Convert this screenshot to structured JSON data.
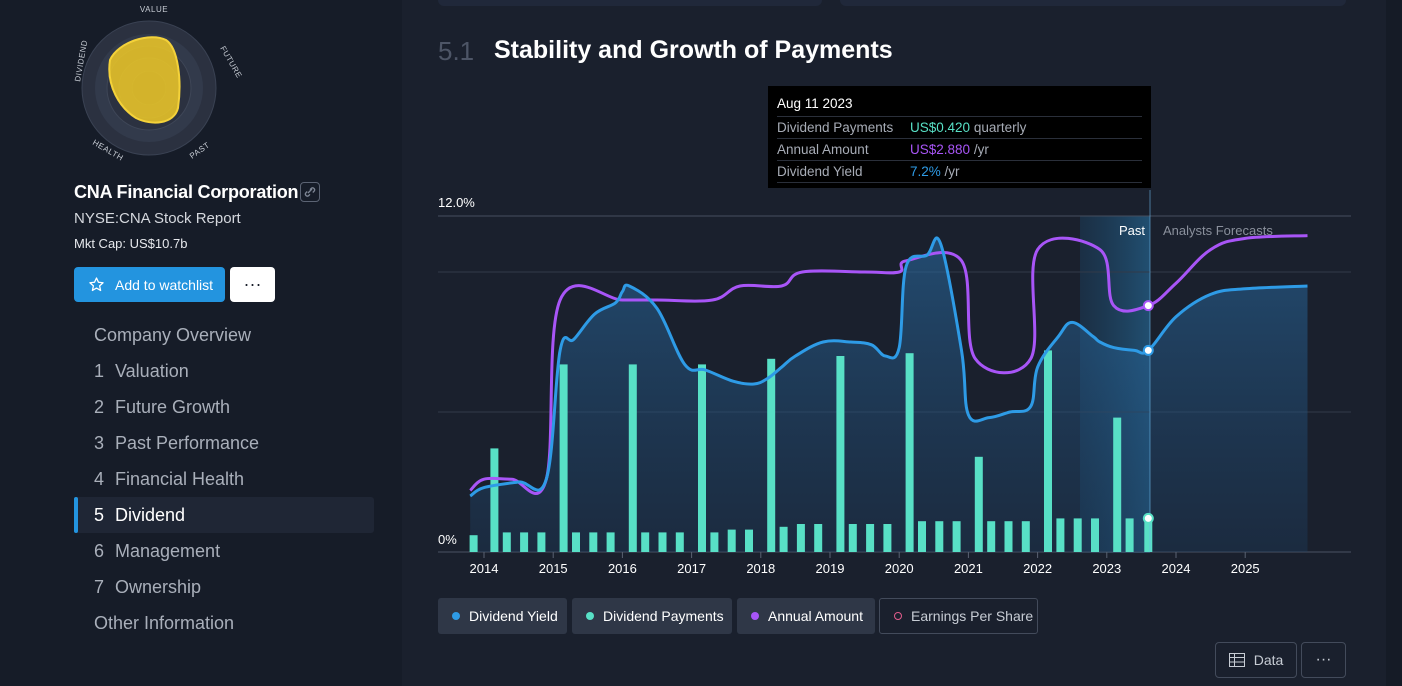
{
  "company": {
    "name": "CNA Financial Corporation",
    "ticker_line": "NYSE:CNA Stock Report",
    "market_cap": "Mkt Cap: US$10.7b"
  },
  "snowflake": {
    "axes": [
      "VALUE",
      "FUTURE",
      "PAST",
      "HEALTH",
      "DIVIDEND"
    ],
    "fill_color": "#e6c229"
  },
  "actions": {
    "watchlist_label": "Add to watchlist",
    "more_label": "···"
  },
  "nav": {
    "items": [
      {
        "num": "",
        "label": "Company Overview"
      },
      {
        "num": "1",
        "label": "Valuation"
      },
      {
        "num": "2",
        "label": "Future Growth"
      },
      {
        "num": "3",
        "label": "Past Performance"
      },
      {
        "num": "4",
        "label": "Financial Health"
      },
      {
        "num": "5",
        "label": "Dividend",
        "active": true
      },
      {
        "num": "6",
        "label": "Management"
      },
      {
        "num": "7",
        "label": "Ownership"
      },
      {
        "num": "",
        "label": "Other Information"
      }
    ]
  },
  "section": {
    "number": "5.1",
    "title": "Stability and Growth of Payments"
  },
  "tooltip": {
    "date": "Aug 11 2023",
    "rows": [
      {
        "label": "Dividend Payments",
        "value": "US$0.420",
        "unit": "quarterly",
        "color": "#58e0c6"
      },
      {
        "label": "Annual Amount",
        "value": "US$2.880",
        "unit": "/yr",
        "color": "#a855f7"
      },
      {
        "label": "Dividend Yield",
        "value": "7.2%",
        "unit": "/yr",
        "color": "#2e9be6"
      }
    ]
  },
  "chart_data": {
    "type": "line",
    "x_ticks": [
      "2014",
      "2015",
      "2016",
      "2017",
      "2018",
      "2019",
      "2020",
      "2021",
      "2022",
      "2023",
      "2024",
      "2025"
    ],
    "y_tick_labels": [
      "12.0%",
      "0%"
    ],
    "ylim": [
      0,
      12
    ],
    "grid": true,
    "region_labels": {
      "past": "Past",
      "forecast": "Analysts Forecasts"
    },
    "series": [
      {
        "name": "Dividend Yield",
        "color": "#2e9be6",
        "points": [
          [
            2013.8,
            2.0
          ],
          [
            2014.0,
            2.3
          ],
          [
            2014.5,
            2.5
          ],
          [
            2014.9,
            2.6
          ],
          [
            2015.1,
            7.2
          ],
          [
            2015.3,
            7.6
          ],
          [
            2015.6,
            8.5
          ],
          [
            2015.9,
            8.9
          ],
          [
            2016.0,
            9.3
          ],
          [
            2016.1,
            9.5
          ],
          [
            2016.5,
            8.7
          ],
          [
            2016.9,
            6.7
          ],
          [
            2017.2,
            6.5
          ],
          [
            2017.6,
            6.1
          ],
          [
            2017.9,
            6.0
          ],
          [
            2018.1,
            6.2
          ],
          [
            2018.3,
            6.6
          ],
          [
            2018.5,
            7.0
          ],
          [
            2018.9,
            7.5
          ],
          [
            2019.3,
            7.5
          ],
          [
            2019.6,
            7.4
          ],
          [
            2019.8,
            7.0
          ],
          [
            2020.0,
            7.3
          ],
          [
            2020.1,
            10.2
          ],
          [
            2020.4,
            10.6
          ],
          [
            2020.6,
            11.0
          ],
          [
            2020.9,
            7.2
          ],
          [
            2021.0,
            4.9
          ],
          [
            2021.3,
            4.8
          ],
          [
            2021.6,
            5.0
          ],
          [
            2021.9,
            5.2
          ],
          [
            2022.0,
            6.6
          ],
          [
            2022.3,
            7.7
          ],
          [
            2022.5,
            8.2
          ],
          [
            2022.8,
            7.7
          ],
          [
            2022.9,
            7.5
          ],
          [
            2023.1,
            7.3
          ],
          [
            2023.4,
            7.2
          ],
          [
            2023.6,
            7.2
          ],
          [
            2024.0,
            8.4
          ],
          [
            2024.5,
            9.2
          ],
          [
            2025.0,
            9.4
          ],
          [
            2025.9,
            9.5
          ]
        ]
      },
      {
        "name": "Annual Amount",
        "color": "#a855f7",
        "points": [
          [
            2013.8,
            2.2
          ],
          [
            2014.0,
            2.6
          ],
          [
            2014.4,
            2.6
          ],
          [
            2014.9,
            2.6
          ],
          [
            2015.1,
            9.0
          ],
          [
            2016.0,
            9.0
          ],
          [
            2016.5,
            9.0
          ],
          [
            2017.3,
            9.0
          ],
          [
            2017.7,
            9.5
          ],
          [
            2018.3,
            9.5
          ],
          [
            2018.6,
            10.0
          ],
          [
            2019.5,
            10.0
          ],
          [
            2020.0,
            10.0
          ],
          [
            2020.1,
            10.4
          ],
          [
            2020.9,
            10.4
          ],
          [
            2021.1,
            6.9
          ],
          [
            2021.9,
            6.9
          ],
          [
            2022.0,
            10.8
          ],
          [
            2022.9,
            10.8
          ],
          [
            2023.1,
            8.8
          ],
          [
            2023.6,
            8.8
          ],
          [
            2024.0,
            9.6
          ],
          [
            2024.5,
            10.8
          ],
          [
            2025.0,
            11.2
          ],
          [
            2025.9,
            11.3
          ]
        ]
      },
      {
        "name": "Dividend Payments",
        "color": "#58e0c6",
        "bars": [
          [
            2013.85,
            0.6
          ],
          [
            2014.15,
            3.7
          ],
          [
            2014.33,
            0.7
          ],
          [
            2014.58,
            0.7
          ],
          [
            2014.83,
            0.7
          ],
          [
            2015.15,
            6.7
          ],
          [
            2015.33,
            0.7
          ],
          [
            2015.58,
            0.7
          ],
          [
            2015.83,
            0.7
          ],
          [
            2016.15,
            6.7
          ],
          [
            2016.33,
            0.7
          ],
          [
            2016.58,
            0.7
          ],
          [
            2016.83,
            0.7
          ],
          [
            2017.15,
            6.7
          ],
          [
            2017.33,
            0.7
          ],
          [
            2017.58,
            0.8
          ],
          [
            2017.83,
            0.8
          ],
          [
            2018.15,
            6.9
          ],
          [
            2018.33,
            0.9
          ],
          [
            2018.58,
            1.0
          ],
          [
            2018.83,
            1.0
          ],
          [
            2019.15,
            7.0
          ],
          [
            2019.33,
            1.0
          ],
          [
            2019.58,
            1.0
          ],
          [
            2019.83,
            1.0
          ],
          [
            2020.15,
            7.1
          ],
          [
            2020.33,
            1.1
          ],
          [
            2020.58,
            1.1
          ],
          [
            2020.83,
            1.1
          ],
          [
            2021.15,
            3.4
          ],
          [
            2021.33,
            1.1
          ],
          [
            2021.58,
            1.1
          ],
          [
            2021.83,
            1.1
          ],
          [
            2022.15,
            7.2
          ],
          [
            2022.33,
            1.2
          ],
          [
            2022.58,
            1.2
          ],
          [
            2022.83,
            1.2
          ],
          [
            2023.15,
            4.8
          ],
          [
            2023.33,
            1.2
          ],
          [
            2023.6,
            1.2
          ]
        ]
      },
      {
        "name": "Earnings Per Share",
        "color": "#e25c8c",
        "points": []
      }
    ]
  },
  "legend": [
    {
      "label": "Dividend Yield",
      "color": "#2e9be6",
      "style": "filled"
    },
    {
      "label": "Dividend Payments",
      "color": "#58e0c6",
      "style": "filled"
    },
    {
      "label": "Annual Amount",
      "color": "#a855f7",
      "style": "filled"
    },
    {
      "label": "Earnings Per Share",
      "color": "#e25c8c",
      "style": "outline"
    }
  ],
  "controls": {
    "data_label": "Data",
    "more_label": "···"
  }
}
